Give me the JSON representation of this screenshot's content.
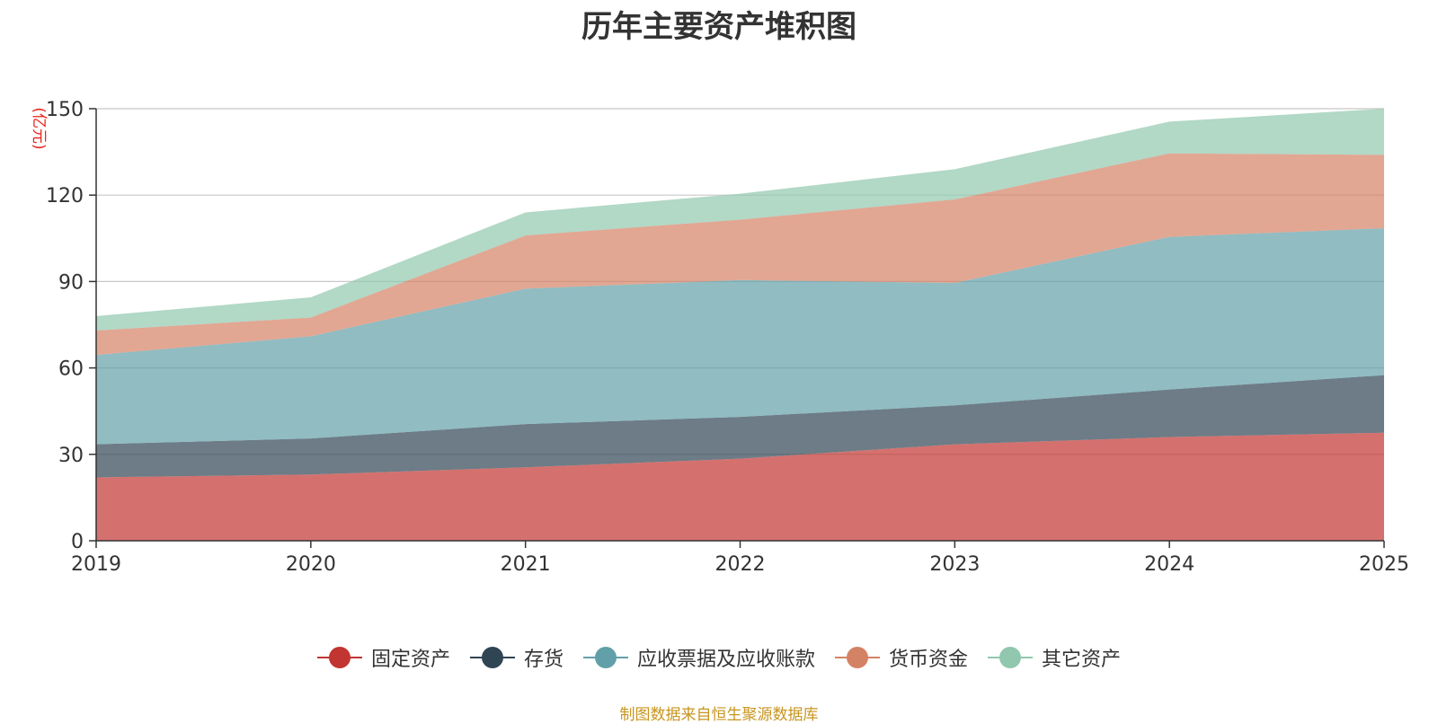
{
  "chart_data": {
    "type": "area",
    "stacked": true,
    "title": "历年主要资产堆积图",
    "unit_label": "(亿元)",
    "categories": [
      "2019",
      "2020",
      "2021",
      "2022",
      "2023",
      "2024",
      "2025"
    ],
    "ylim": [
      0,
      150
    ],
    "yticks": [
      0,
      30,
      60,
      90,
      120,
      150
    ],
    "grid": true,
    "legend_position": "bottom-center",
    "series": [
      {
        "name": "固定资产",
        "color": "#c23531",
        "values": [
          22,
          23,
          25.5,
          28.5,
          33.5,
          36,
          37.5
        ]
      },
      {
        "name": "存货",
        "color": "#2f4554",
        "values": [
          11.5,
          12.5,
          15,
          14.5,
          13.5,
          16.5,
          20
        ]
      },
      {
        "name": "应收票据及应收账款",
        "color": "#61a0a8",
        "values": [
          31,
          35.5,
          47,
          47.5,
          42.5,
          53,
          51
        ]
      },
      {
        "name": "货币资金",
        "color": "#d48265",
        "values": [
          8.5,
          6.5,
          18.5,
          21,
          29,
          29,
          25.5
        ]
      },
      {
        "name": "其它资产",
        "color": "#91c7ae",
        "values": [
          5,
          7,
          8,
          9,
          10.5,
          11,
          16
        ]
      }
    ],
    "source_note": "制图数据来自恒生聚源数据库"
  }
}
